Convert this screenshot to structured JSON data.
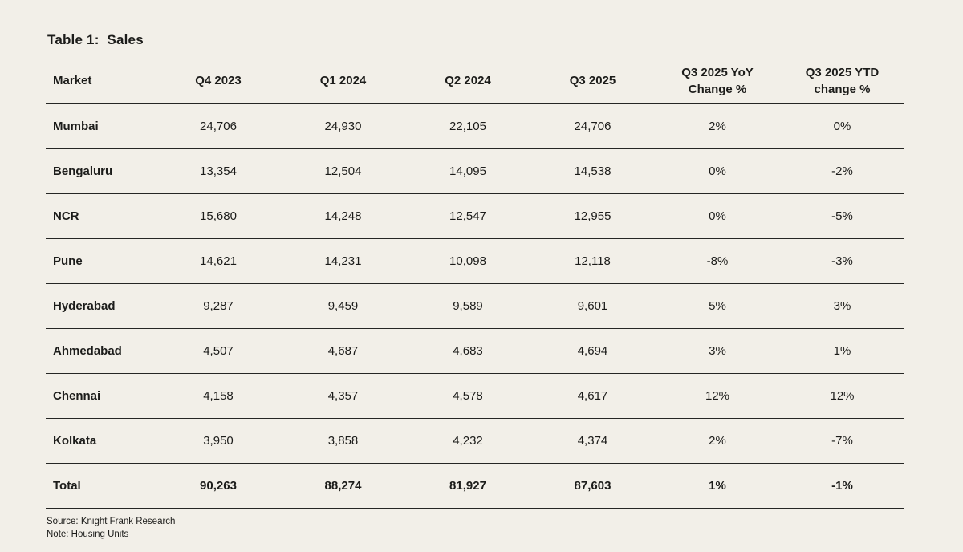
{
  "page": {
    "title": "Table 1:  Sales",
    "background_color": "#f2efe8",
    "line_color": "#262624",
    "text_color": "#1c1c1a"
  },
  "footer": {
    "source": "Source: Knight Frank Research",
    "note": "Note: Housing Units"
  },
  "chart_data": {
    "type": "table",
    "title": "Table 1:  Sales",
    "columns": [
      "Market",
      "Q4 2023",
      "Q1 2024",
      "Q2 2024",
      "Q3 2025",
      "Q3 2025 YoY\nChange %",
      "Q3 2025 YTD\nchange %"
    ],
    "rows": [
      [
        "Mumbai",
        "24,706",
        "24,930",
        "22,105",
        "24,706",
        "2%",
        "0%"
      ],
      [
        "Bengaluru",
        "13,354",
        "12,504",
        "14,095",
        "14,538",
        "0%",
        "-2%"
      ],
      [
        "NCR",
        "15,680",
        "14,248",
        "12,547",
        "12,955",
        "0%",
        "-5%"
      ],
      [
        "Pune",
        "14,621",
        "14,231",
        "10,098",
        "12,118",
        "-8%",
        "-3%"
      ],
      [
        "Hyderabad",
        "9,287",
        "9,459",
        "9,589",
        "9,601",
        "5%",
        "3%"
      ],
      [
        "Ahmedabad",
        "4,507",
        "4,687",
        "4,683",
        "4,694",
        "3%",
        "1%"
      ],
      [
        "Chennai",
        "4,158",
        "4,357",
        "4,578",
        "4,617",
        "12%",
        "12%"
      ],
      [
        "Kolkata",
        "3,950",
        "3,858",
        "4,232",
        "4,374",
        "2%",
        "-7%"
      ]
    ],
    "total_row": [
      "Total",
      "90,263",
      "88,274",
      "81,927",
      "87,603",
      "1%",
      "-1%"
    ],
    "units": "Housing Units",
    "source": "Knight Frank Research",
    "layout": {
      "grid": "horizontal-rules-only",
      "first_column_align": "left",
      "value_columns_align": "center"
    }
  }
}
